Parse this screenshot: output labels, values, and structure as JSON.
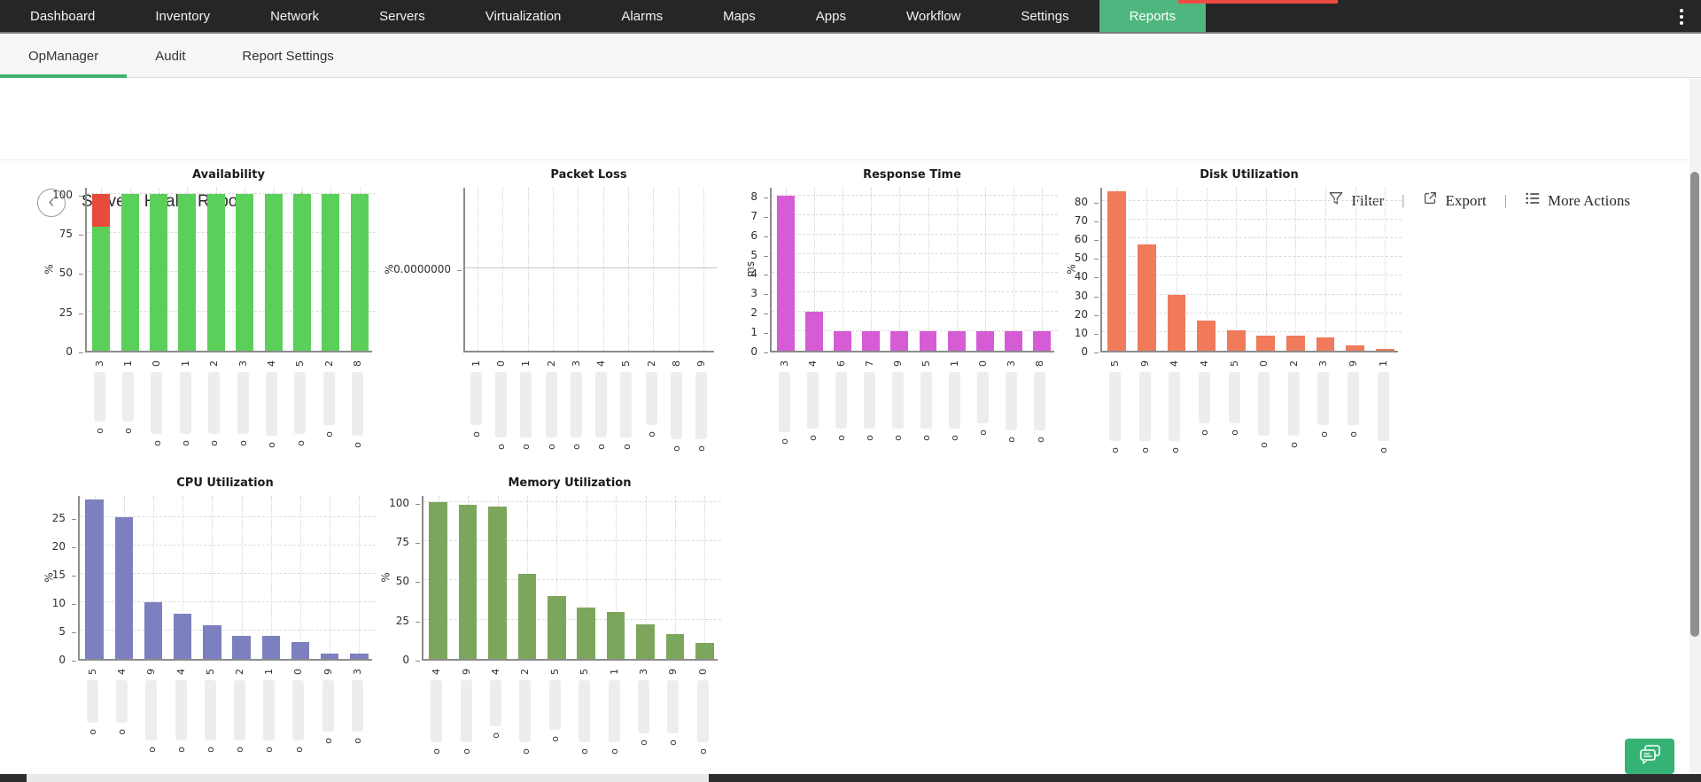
{
  "topnav": {
    "items": [
      "Dashboard",
      "Inventory",
      "Network",
      "Servers",
      "Virtualization",
      "Alarms",
      "Maps",
      "Apps",
      "Workflow",
      "Settings",
      "Reports"
    ],
    "active_item": "Reports",
    "active_color": "#4eb67e",
    "bg_color": "#262626",
    "overflow_menu_icon": "kebab-dots",
    "alert_strip_color": "#ef4b45"
  },
  "subnav": {
    "tabs": [
      "OpManager",
      "Audit",
      "Report Settings"
    ],
    "active_tab": "OpManager",
    "underline_color": "#43b06f"
  },
  "header": {
    "back_icon": "‹",
    "title": "Servers Health Report",
    "favorite_icon": "★",
    "favorite_color": "#f2a33c",
    "action_separator": "|",
    "actions": [
      {
        "label": "Filter",
        "icon": "filter-funnel-icon"
      },
      {
        "label": "Export",
        "icon": "export-icon"
      },
      {
        "label": "More Actions",
        "icon": "list-icon"
      }
    ]
  },
  "footer": {
    "chat_button_icon": "chat-bubbles-icon",
    "chat_button_color": "#35b374"
  },
  "chart_data": [
    {
      "type": "bar",
      "title": "Availability",
      "ylabel": "%",
      "ylim": [
        0,
        105
      ],
      "yticks": [
        0,
        25,
        50,
        75,
        100
      ],
      "grid": true,
      "stacked": true,
      "series": [
        {
          "name": "available",
          "color": "#5ad05a",
          "values": [
            79,
            100,
            100,
            100,
            100,
            100,
            100,
            100,
            100,
            100
          ]
        },
        {
          "name": "unavailable",
          "color": "#e64b3c",
          "values": [
            21,
            0,
            0,
            0,
            0,
            0,
            0,
            0,
            0,
            0
          ]
        }
      ],
      "x_tick_top_chars": [
        "3",
        "1",
        "0",
        "1",
        "2",
        "3",
        "4",
        "5",
        "2",
        "8"
      ],
      "x_tick_bottom_char": "o",
      "x_ticks_redacted": true,
      "pill_lengths": [
        56,
        56,
        70,
        70,
        70,
        70,
        72,
        70,
        60,
        72
      ]
    },
    {
      "type": "bar",
      "title": "Packet Loss",
      "ylabel": "%",
      "ylim": [
        -1,
        1
      ],
      "yticks": [
        0
      ],
      "ytick_labels": [
        "0.0000000"
      ],
      "grid": true,
      "midline_solid": true,
      "series": [
        {
          "name": "packet-loss",
          "color": "#bbbbbb",
          "values": [
            0,
            0,
            0,
            0,
            0,
            0,
            0,
            0,
            0,
            0
          ]
        }
      ],
      "x_tick_top_chars": [
        "1",
        "0",
        "1",
        "2",
        "3",
        "4",
        "5",
        "2",
        "8",
        "9"
      ],
      "x_tick_bottom_char": "o",
      "x_ticks_redacted": true,
      "pill_lengths": [
        60,
        74,
        74,
        74,
        74,
        74,
        74,
        60,
        76,
        76
      ]
    },
    {
      "type": "bar",
      "title": "Response Time",
      "ylabel": "ms",
      "ylim": [
        0,
        8.5
      ],
      "yticks": [
        0,
        1,
        2,
        3,
        4,
        5,
        6,
        7,
        8
      ],
      "grid": true,
      "series": [
        {
          "name": "response-time",
          "color": "#d65cd6",
          "values": [
            8,
            2,
            1,
            1,
            1,
            1,
            1,
            1,
            1,
            1
          ]
        }
      ],
      "x_tick_top_chars": [
        "3",
        "4",
        "6",
        "7",
        "9",
        "5",
        "1",
        "0",
        "3",
        "8"
      ],
      "x_tick_bottom_char": "o",
      "x_ticks_redacted": true,
      "pill_lengths": [
        68,
        64,
        64,
        64,
        64,
        64,
        64,
        58,
        66,
        66
      ]
    },
    {
      "type": "bar",
      "title": "Disk Utilization",
      "ylabel": "%",
      "ylim": [
        0,
        88
      ],
      "yticks": [
        0,
        10,
        20,
        30,
        40,
        50,
        60,
        70,
        80
      ],
      "grid": true,
      "series": [
        {
          "name": "disk-utilization",
          "color": "#f07a5a",
          "values": [
            85,
            57,
            30,
            16,
            11,
            8,
            8,
            7,
            3,
            1
          ]
        }
      ],
      "x_tick_top_chars": [
        "5",
        "9",
        "4",
        "4",
        "5",
        "0",
        "2",
        "3",
        "9",
        "1"
      ],
      "x_tick_bottom_char": "o",
      "x_ticks_redacted": true,
      "pill_lengths": [
        78,
        78,
        78,
        58,
        58,
        72,
        72,
        60,
        60,
        78
      ]
    },
    {
      "type": "bar",
      "title": "CPU Utilization",
      "ylabel": "%",
      "ylim": [
        0,
        29
      ],
      "yticks": [
        0,
        5,
        10,
        15,
        20,
        25
      ],
      "grid": true,
      "series": [
        {
          "name": "cpu-utilization",
          "color": "#7c80bf",
          "values": [
            28,
            25,
            10,
            8,
            6,
            4,
            4,
            3,
            1,
            1
          ]
        }
      ],
      "x_tick_top_chars": [
        "5",
        "4",
        "9",
        "4",
        "5",
        "2",
        "1",
        "0",
        "9",
        "3"
      ],
      "x_tick_bottom_char": "o",
      "x_ticks_redacted": true,
      "pill_lengths": [
        48,
        48,
        68,
        68,
        68,
        68,
        68,
        68,
        58,
        58
      ]
    },
    {
      "type": "bar",
      "title": "Memory Utilization",
      "ylabel": "%",
      "ylim": [
        0,
        105
      ],
      "yticks": [
        0,
        25,
        50,
        75,
        100
      ],
      "grid": true,
      "series": [
        {
          "name": "memory-utilization",
          "color": "#7da65d",
          "values": [
            100,
            98,
            97,
            54,
            40,
            33,
            30,
            22,
            16,
            10
          ]
        }
      ],
      "x_tick_top_chars": [
        "4",
        "9",
        "4",
        "2",
        "5",
        "5",
        "1",
        "3",
        "9",
        "0"
      ],
      "x_tick_bottom_char": "o",
      "x_ticks_redacted": true,
      "pill_lengths": [
        70,
        70,
        52,
        70,
        56,
        70,
        70,
        60,
        60,
        70
      ]
    }
  ]
}
